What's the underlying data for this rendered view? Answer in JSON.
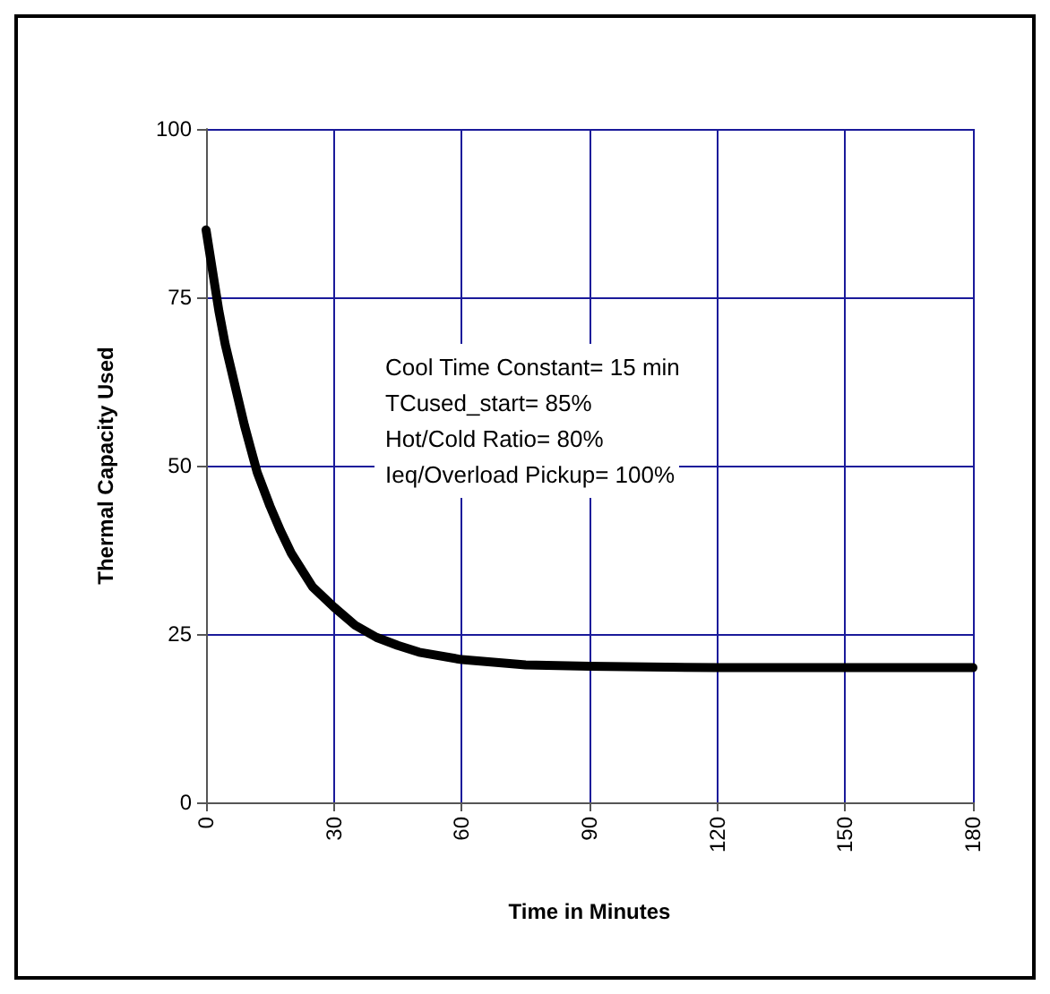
{
  "chart_data": {
    "type": "line",
    "xlabel": "Time in Minutes",
    "ylabel": "Thermal Capacity Used",
    "x": [
      0,
      1.5,
      3,
      4.5,
      6,
      7.5,
      9,
      10.5,
      12,
      15,
      17.5,
      20,
      25,
      30,
      35,
      40,
      45,
      50,
      60,
      75,
      90,
      120,
      150,
      180
    ],
    "series": [
      {
        "color": "#000000",
        "values": [
          85,
          79,
          73,
          68,
          64,
          60,
          56,
          52.5,
          49,
          44,
          40.3,
          37,
          32,
          29,
          26.3,
          24.5,
          23.3,
          22.3,
          21.2,
          20.4,
          20.2,
          20,
          20,
          20
        ]
      }
    ],
    "xlim": [
      0,
      180
    ],
    "xticks": [
      0,
      30,
      60,
      90,
      120,
      150,
      180
    ],
    "ylim": [
      0,
      100
    ],
    "yticks": [
      0,
      25,
      50,
      75,
      100
    ],
    "grid": true,
    "marker": "none",
    "line_style": "solid",
    "annotations": [
      "Cool Time Constant= 15 min",
      "TCused_start= 85%",
      "Hot/Cold Ratio= 80%",
      "Ieq/Overload Pickup= 100%"
    ]
  }
}
